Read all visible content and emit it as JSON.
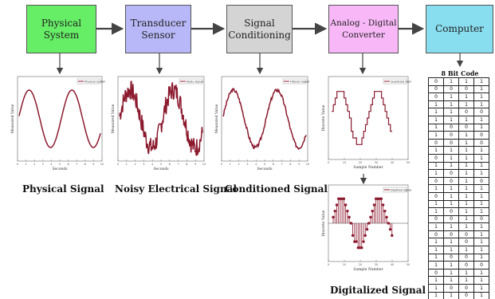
{
  "blocks": [
    {
      "id": "physical",
      "line1": "Physical",
      "line2": "System",
      "color": "#66ee66"
    },
    {
      "id": "transducer",
      "line1": "Transducer",
      "line2": "Sensor",
      "color": "#b8b8f8"
    },
    {
      "id": "conditioning",
      "line1": "Signal",
      "line2": "Conditioning",
      "color": "#d4d4d4"
    },
    {
      "id": "adc",
      "line1": "Analog - Digital",
      "line2": "Converter",
      "color": "#f8b8f8"
    },
    {
      "id": "computer",
      "line1": "Computer",
      "line2": "",
      "color": "#88ddee"
    }
  ],
  "captions": {
    "physical": "Physical Signal",
    "noisy": "Noisy Electrical Signal",
    "conditioned": "Conditioned Signal",
    "digitalized": "Digitalized Signal"
  },
  "plots": {
    "physical": {
      "legend": "Physical System",
      "ylabel": "Measured Value",
      "xlabel": "Seconds",
      "color": "#8b1a2e"
    },
    "noisy": {
      "legend": "Noisy Signal",
      "ylabel": "Measured Value",
      "xlabel": "Seconds",
      "color": "#8b1a2e"
    },
    "conditioned": {
      "legend": "Filtered Signal",
      "ylabel": "Measured Value",
      "xlabel": "Seconds",
      "color": "#8b1a2e"
    },
    "quantized": {
      "legend": "Quantized Signal",
      "ylabel": "Discrete Value",
      "xlabel": "Sample Number",
      "color": "#8b1a2e"
    },
    "digital": {
      "legend": "Digitized Signal",
      "ylabel": "Discrete Value",
      "xlabel": "Sample Number",
      "color": "#8b1a2e"
    }
  },
  "code_table": {
    "title": "8 Bit Code",
    "rows": [
      [
        "0",
        "1",
        "1",
        "1"
      ],
      [
        "0",
        "0",
        "0",
        "1"
      ],
      [
        "0",
        "1",
        "1",
        "1"
      ],
      [
        "1",
        "1",
        "1",
        "1"
      ],
      [
        "1",
        "1",
        "0",
        "0"
      ],
      [
        "1",
        "1",
        "1",
        "1"
      ],
      [
        "1",
        "0",
        "0",
        "1"
      ],
      [
        "1",
        "0",
        "1",
        "0"
      ],
      [
        "0",
        "0",
        "1",
        "0"
      ],
      [
        "1",
        "1",
        "1",
        "1"
      ],
      [
        "0",
        "1",
        "1",
        "1"
      ],
      [
        "1",
        "1",
        "1",
        "1"
      ],
      [
        "1",
        "0",
        "1",
        "1"
      ],
      [
        "0",
        "0",
        "1",
        "0"
      ],
      [
        "1",
        "1",
        "1",
        "1"
      ],
      [
        "0",
        "1",
        "1",
        "1"
      ],
      [
        "1",
        "1",
        "1",
        "1"
      ],
      [
        "1",
        "0",
        "1",
        "1"
      ],
      [
        "0",
        "0",
        "1",
        "0"
      ],
      [
        "1",
        "1",
        "1",
        "1"
      ],
      [
        "0",
        "0",
        "0",
        "1"
      ],
      [
        "1",
        "1",
        "0",
        "1"
      ],
      [
        "1",
        "1",
        "1",
        "1"
      ],
      [
        "1",
        "0",
        "0",
        "1"
      ],
      [
        "1",
        "1",
        "0",
        "0"
      ],
      [
        "0",
        "1",
        "1",
        "1"
      ],
      [
        "1",
        "1",
        "1",
        "1"
      ],
      [
        "1",
        "0",
        "0",
        "1"
      ],
      [
        "1",
        "1",
        "0",
        "1"
      ],
      [
        "1",
        "1",
        "1",
        "0"
      ]
    ]
  }
}
